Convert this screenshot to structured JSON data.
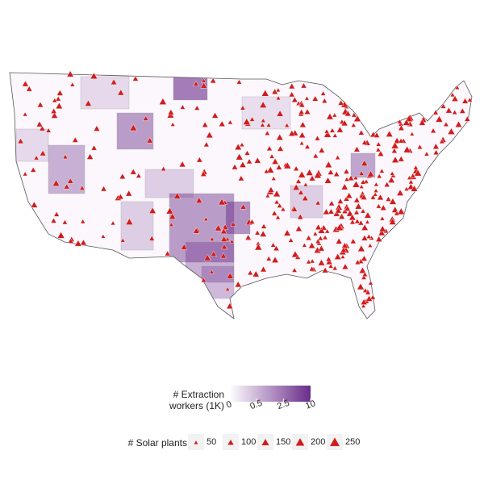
{
  "map": {
    "extraction_legend": {
      "title": "# Extraction workers (1K)",
      "ticks": [
        0,
        0.5,
        2.5,
        10
      ],
      "color_low": "#ffffff",
      "color_high": "#6a2c8a"
    },
    "solar_legend": {
      "title": "# Solar plants",
      "sizes": [
        50,
        100,
        150,
        200,
        250
      ],
      "color": "#d01c1c"
    }
  }
}
